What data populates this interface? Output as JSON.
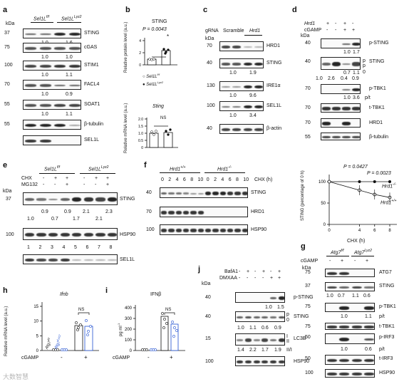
{
  "panels": {
    "a": {
      "letter": "a",
      "kda_label": "kDa",
      "group1": "Sel1L",
      "group1_sup": "f/f",
      "group2": "Sel1L",
      "group2_sup": "Lyz2",
      "rows": [
        {
          "mw": "37",
          "label": "STING",
          "quant": [
            "1.0",
            "1.6"
          ]
        },
        {
          "mw": "75",
          "label": "cGAS",
          "quant": [
            "1.0",
            "1.0"
          ]
        },
        {
          "mw": "100",
          "label": "STIM1",
          "quant": [
            "1.0",
            "1.1"
          ]
        },
        {
          "mw": "70",
          "label": "FACL4",
          "quant": [
            "1.0",
            "0.9"
          ]
        },
        {
          "mw": "55",
          "label": "SOAT1",
          "quant": [
            "1.0",
            "1.1"
          ]
        },
        {
          "mw": "55",
          "label": "β-tubulin",
          "quant": []
        },
        {
          "mw": "",
          "label": "SEL1L",
          "quant": []
        }
      ]
    },
    "b": {
      "letter": "b",
      "top_title": "STING",
      "top_p": "P = 0.0043",
      "top_star": "*",
      "top_ylabel": "Relative protein level (a.u.)",
      "top_yticks": [
        "0",
        "2",
        "4"
      ],
      "legend_open": "Sel1L",
      "legend_open_sup": "f/f",
      "legend_filled": "Sel1L",
      "legend_filled_sup": "Lyz2",
      "bottom_title": "Sting",
      "bottom_ns": "NS",
      "bottom_ylabel": "Relative mRNA level (a.u.)",
      "bottom_yticks": [
        "0",
        "0.5",
        "1.0",
        "1.5",
        "2.0"
      ]
    },
    "c": {
      "letter": "c",
      "header_grna": "gRNA",
      "header_scramble": "Scramble",
      "header_hrd1": "Hrd1",
      "kda_label": "kDa",
      "rows": [
        {
          "mw": "70",
          "label": "HRD1",
          "quant": []
        },
        {
          "mw": "40",
          "label": "STING",
          "quant": [
            "1.0",
            "1.9"
          ]
        },
        {
          "mw": "130",
          "label": "IRE1α",
          "quant": [
            "1.0",
            "9.6"
          ]
        },
        {
          "mw": "100",
          "label": "SEL1L",
          "quant": [
            "1.0",
            "3.4"
          ]
        },
        {
          "mw": "40",
          "label": "β-actin",
          "quant": []
        }
      ]
    },
    "d": {
      "letter": "d",
      "hrd1_label": "Hrd1",
      "cgamp_label": "cGAMP",
      "hrd1_signs": [
        "+",
        "-",
        "+",
        "-"
      ],
      "cgamp_signs": [
        "-",
        "-",
        "+",
        "+"
      ],
      "kda_label": "kDa",
      "rows": [
        {
          "mw": "40",
          "label": "p-STING",
          "quant": [
            "1.0",
            "1.7"
          ]
        },
        {
          "mw": "40",
          "label": "STING",
          "quant_line1": [
            "0.7",
            "1.1"
          ],
          "quant_line2": [
            "1.0",
            "2.6",
            "0.4",
            "0.9"
          ],
          "side": [
            "p",
            "/",
            "p",
            "0"
          ]
        },
        {
          "mw": "70",
          "label": "p-TBK1",
          "quant": [
            "1.0",
            "3.6"
          ],
          "side": "p/t"
        },
        {
          "mw": "70",
          "label": "t-TBK1",
          "quant": []
        },
        {
          "mw": "70",
          "label": "HRD1",
          "quant": []
        },
        {
          "mw": "55",
          "label": "β-tubulin",
          "quant": []
        }
      ]
    },
    "e": {
      "letter": "e",
      "group1": "Sel1L",
      "group1_sup": "f/f",
      "group2": "Sel1L",
      "group2_sup": "Lyz2",
      "chx_label": "CHX",
      "mg132_label": "MG132",
      "chx_signs": [
        "-",
        "+",
        "+",
        "-",
        "+",
        "+"
      ],
      "mg132_signs": [
        "-",
        "-",
        "+",
        "-",
        "-",
        "+"
      ],
      "kda_label": "kDa",
      "sting_mw": "37",
      "sting_label": "STING",
      "quant_top": [
        "0.9",
        "0.9",
        "2.1",
        "2.3"
      ],
      "quant_bot": [
        "1.0",
        "0.7",
        "1.7",
        "2.1"
      ],
      "hsp_mw": "100",
      "hsp_label": "HSP90",
      "lanes": [
        "1",
        "2",
        "3",
        "4",
        "5",
        "6",
        "7",
        "8"
      ],
      "sel1l_label": "SEL1L"
    },
    "f": {
      "letter": "f",
      "group1": "Hrd1",
      "group1_sup": "+/+",
      "group2": "Hrd1",
      "group2_sup": "-/-",
      "times": [
        "0",
        "2",
        "4",
        "6",
        "8",
        "10",
        "0",
        "2",
        "4",
        "6",
        "8",
        "10"
      ],
      "chx_label": "CHX (h)",
      "rows": [
        {
          "mw": "40",
          "label": "STING"
        },
        {
          "mw": "70",
          "label": "HRD1"
        },
        {
          "mw": "100",
          "label": "HSP90"
        }
      ]
    },
    "f_plot": {
      "p1": "P = 0.0427",
      "p2": "P = 0.0023",
      "ylabel": "STING (percentage of 0 h)",
      "xlabel": "CHX (h)",
      "label_ko": "Hrd1",
      "label_ko_sup": "-/-",
      "label_wt": "Hrd1",
      "label_wt_sup": "+/+",
      "yticks": [
        "0",
        "50",
        "100"
      ],
      "xticks": [
        "0",
        "4",
        "6",
        "8"
      ]
    },
    "g": {
      "letter": "g",
      "group1": "Atg7",
      "group1_sup": "f/f",
      "group2": "Atg7",
      "group2_sup": "Lyz2",
      "cgamp_label": "cGAMP",
      "cgamp_signs": [
        "-",
        "+",
        "-",
        "+"
      ],
      "kda_label": "kDa",
      "rows": [
        {
          "mw": "75",
          "label": "ATG7",
          "quant": []
        },
        {
          "mw": "37",
          "label": "STING",
          "quant": [
            "1.0",
            "0.7",
            "1.1",
            "0.6"
          ]
        },
        {
          "mw": "",
          "label": "p-TBK1",
          "quant": [
            "1.0",
            "1.1"
          ],
          "side": "p/t"
        },
        {
          "mw": "",
          "label": "t-TBK1",
          "quant": []
        },
        {
          "mw": "",
          "label": "p-IRF3",
          "quant": [
            "1.0",
            "0.6"
          ],
          "side": "p/t"
        },
        {
          "mw": "",
          "label": "t-IRF3",
          "quant": []
        },
        {
          "mw": "",
          "label": "HSP90",
          "quant": []
        }
      ],
      "mw_p_tbk1": "75",
      "mw_t_tbk1": "75",
      "mw_p_irf3": "50",
      "mw_t_irf3": "50",
      "mw_hsp90": "100"
    },
    "h": {
      "letter": "h",
      "title": "Ifnb",
      "ylabel": "Relative mRNA level (a.u.)",
      "yticks": [
        "0",
        "5",
        "10",
        "15"
      ],
      "ns": "NS",
      "legend1": "Atg7",
      "legend1_sup": "f/f",
      "legend2": "Atg7",
      "legend2_sup": "Lyz2",
      "cgamp_label": "cGAMP",
      "cgamp_signs": [
        "-",
        "+"
      ]
    },
    "i": {
      "letter": "i",
      "title": "IFNβ",
      "ylabel": "pg ml",
      "ylabel_sup": "-1",
      "yticks": [
        "0",
        "100",
        "200",
        "300",
        "400"
      ],
      "ns": "NS",
      "cgamp_label": "cGAMP",
      "cgamp_signs": [
        "-",
        "+"
      ]
    },
    "j": {
      "letter": "j",
      "bafa1_label": "BafA1",
      "dmxaa_label": "DMXAA",
      "bafa1_signs": [
        "-",
        "+",
        "-",
        "+",
        "-",
        "+"
      ],
      "dmxaa_signs": [
        "-",
        "-",
        "-",
        "-",
        "+",
        "+"
      ],
      "kda_label": "kDa",
      "rows": [
        {
          "mw": "40",
          "label": "p-STING",
          "quant": [
            "1.0",
            "1.5"
          ]
        },
        {
          "mw": "40",
          "label": "STING",
          "quant": [
            "1.0",
            "1.1",
            "0.6",
            "0.9"
          ],
          "side": [
            "p",
            "0"
          ]
        },
        {
          "mw": "15",
          "label": "LC3B",
          "quant": [
            "1.4",
            "2.2",
            "1.7",
            "1.9"
          ],
          "side": [
            "I",
            "II",
            "II/I"
          ]
        },
        {
          "mw": "100",
          "label": "HSP90",
          "quant": []
        }
      ]
    },
    "watermark": "大数智慧"
  },
  "colors": {
    "blue": "#1f4fd1",
    "band": "#1a1a1a",
    "grey": "#999999"
  }
}
